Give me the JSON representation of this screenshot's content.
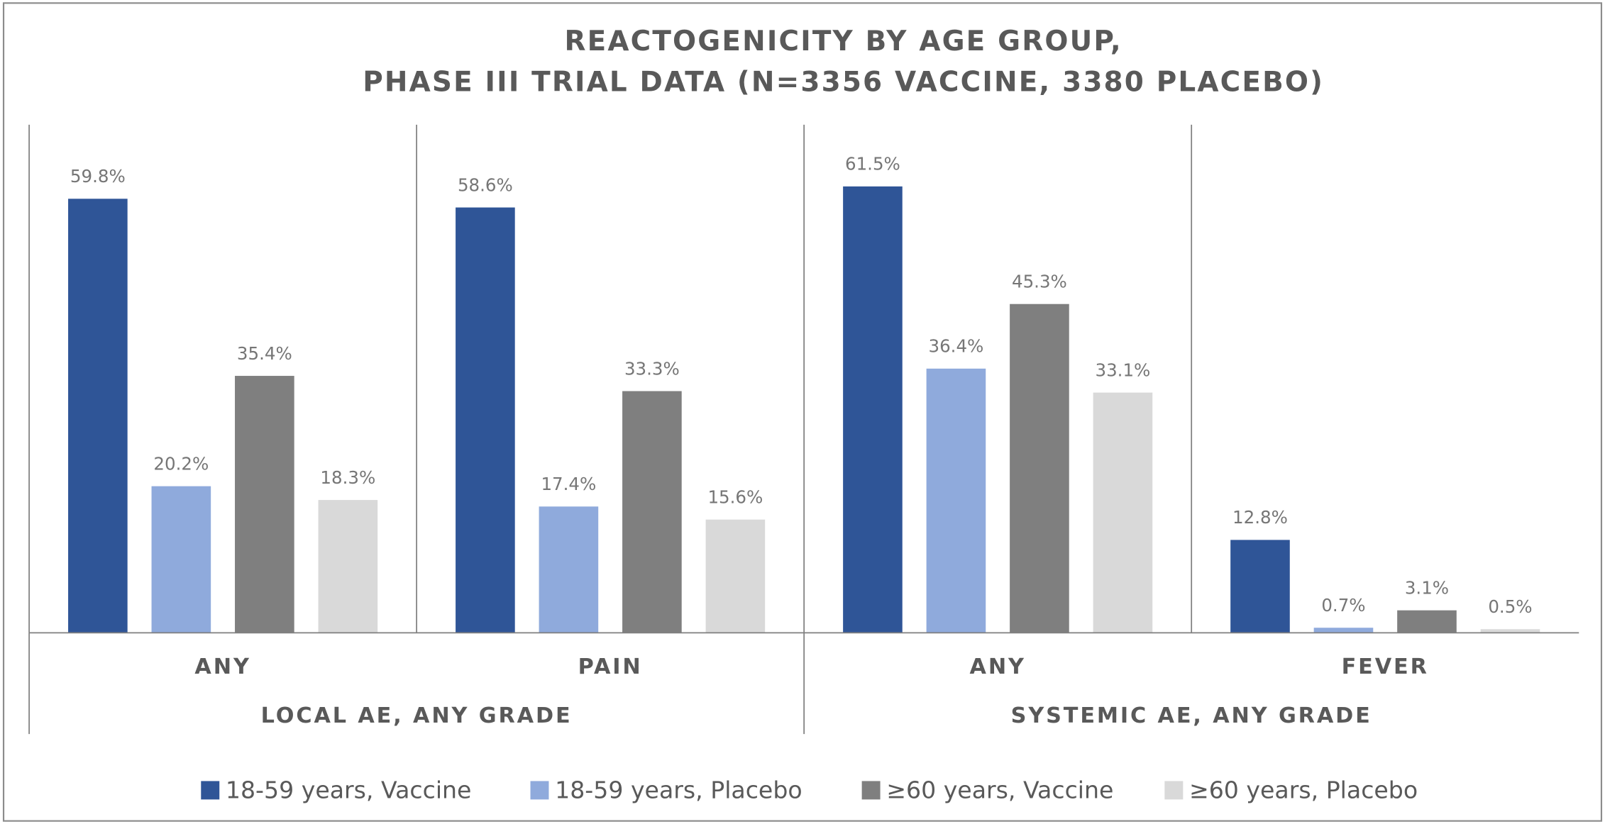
{
  "chart_data": {
    "type": "bar",
    "title": [
      "REACTOGENICITY BY AGE GROUP,",
      "PHASE III TRIAL DATA (N=3356 VACCINE, 3380 PLACEBO)"
    ],
    "categories": [
      "ANY",
      "PAIN",
      "ANY",
      "FEVER"
    ],
    "groups": [
      {
        "label": "LOCAL AE, ANY GRADE",
        "size": 2
      },
      {
        "label": "SYSTEMIC AE, ANY GRADE",
        "size": 2
      }
    ],
    "ylim": [
      0,
      70
    ],
    "series": [
      {
        "name": "18-59 years, Vaccine",
        "color": "#2f5597",
        "values": [
          59.8,
          58.6,
          61.5,
          12.8
        ],
        "value_labels": [
          "59.8%",
          "58.6%",
          "61.5%",
          "12.8%"
        ]
      },
      {
        "name": "18-59 years, Placebo",
        "color": "#8faadc",
        "values": [
          20.2,
          17.4,
          36.4,
          0.7
        ],
        "value_labels": [
          "20.2%",
          "17.4%",
          "36.4%",
          "0.7%"
        ]
      },
      {
        "name": "≥60 years, Vaccine",
        "color": "#7f7f7f",
        "values": [
          35.4,
          33.3,
          45.3,
          3.1
        ],
        "value_labels": [
          "35.4%",
          "33.3%",
          "45.3%",
          "3.1%"
        ]
      },
      {
        "name": "≥60 years, Placebo",
        "color": "#d9d9d9",
        "values": [
          18.3,
          15.6,
          33.1,
          0.5
        ],
        "value_labels": [
          "18.3%",
          "15.6%",
          "33.1%",
          "0.5%"
        ]
      }
    ],
    "legend": "bottom"
  }
}
